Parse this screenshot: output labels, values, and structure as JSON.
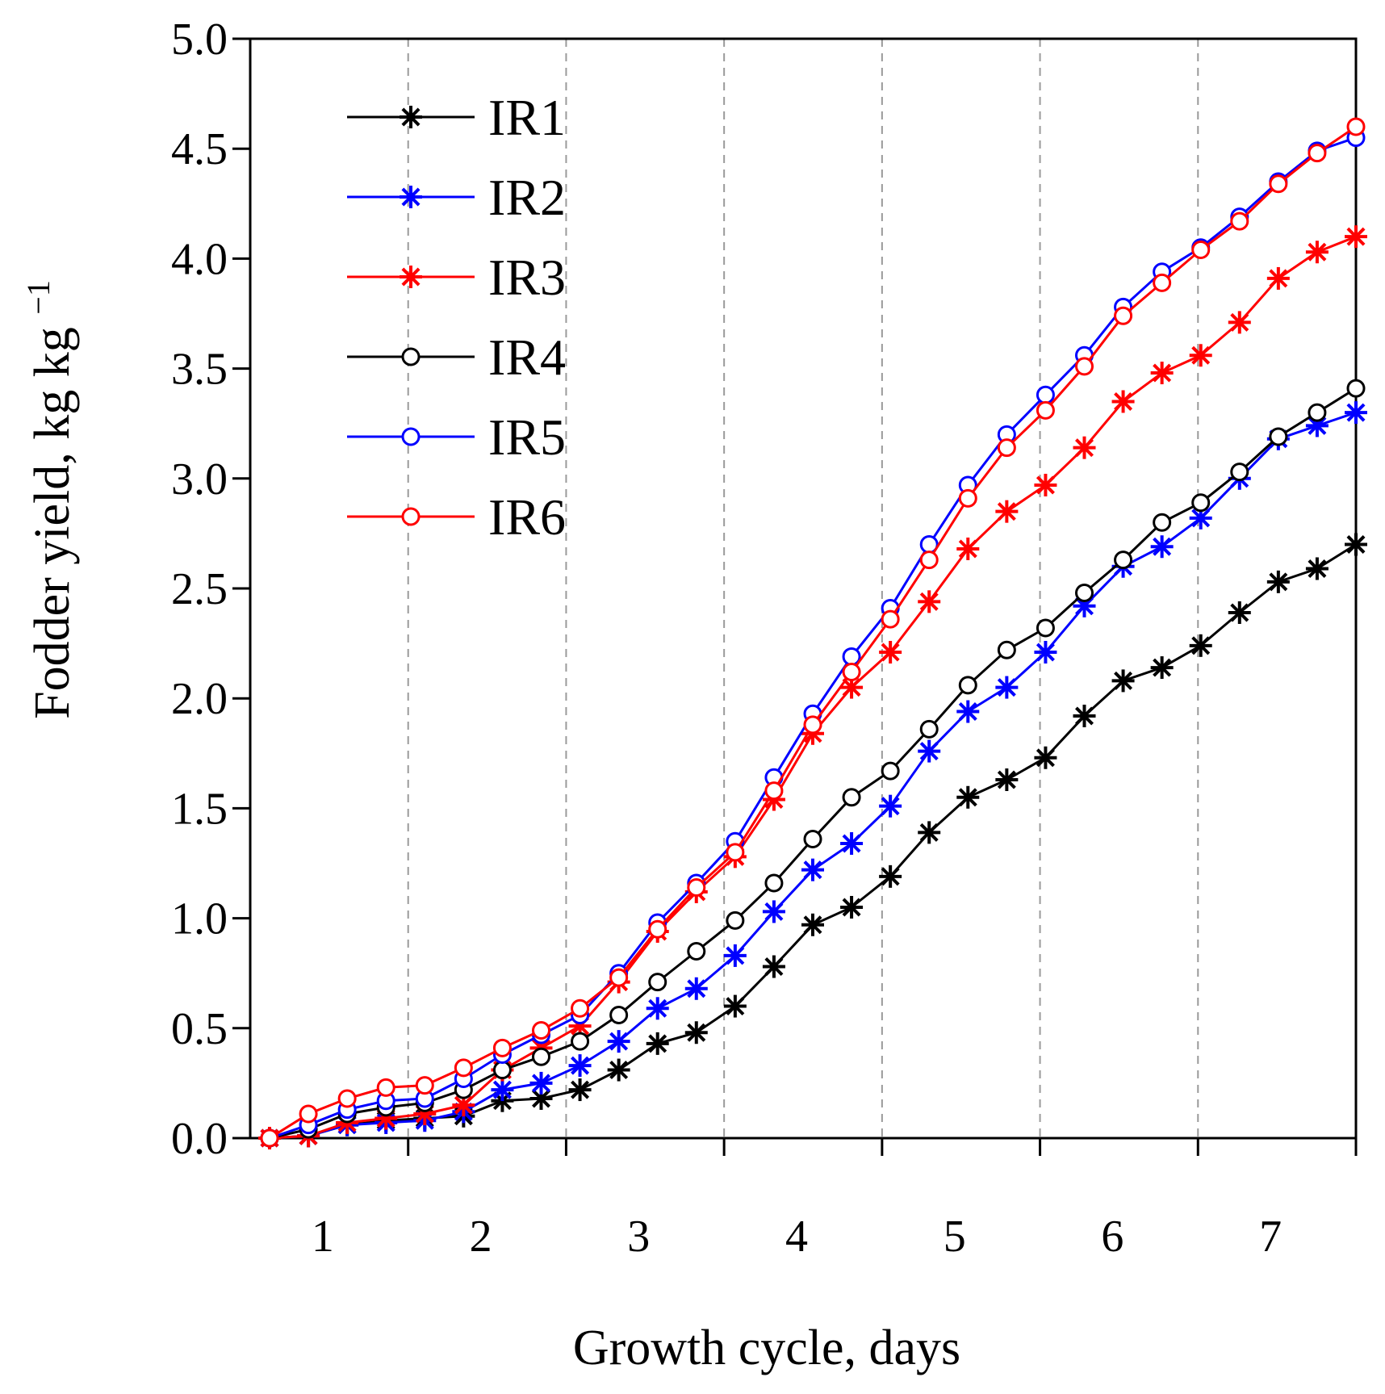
{
  "chart_data": {
    "type": "line",
    "xlabel": "Growth cycle, days",
    "ylabel": "Fodder yield, kg kg",
    "ylabel_sup": "−1",
    "ylim": [
      0,
      5
    ],
    "xlim": [
      0,
      7
    ],
    "yticks": [
      "0.0",
      "0.5",
      "1.0",
      "1.5",
      "2.0",
      "2.5",
      "3.0",
      "3.5",
      "4.0",
      "4.5",
      "5.0"
    ],
    "xtick_labels": [
      "1",
      "2",
      "3",
      "4",
      "5",
      "6",
      "7"
    ],
    "grid": "vertical dashed at day boundaries",
    "legend_position": "top-left",
    "x": [
      0,
      0.25,
      0.5,
      0.75,
      1,
      1.25,
      1.5,
      1.75,
      2,
      2.25,
      2.5,
      2.75,
      3,
      3.25,
      3.5,
      3.75,
      4,
      4.25,
      4.5,
      4.75,
      5,
      5.25,
      5.5,
      5.75,
      6,
      6.25,
      6.5,
      6.75,
      7
    ],
    "series": [
      {
        "name": "IR1",
        "color": "#000000",
        "marker": "star",
        "values": [
          0,
          0.01,
          0.06,
          0.08,
          0.09,
          0.1,
          0.17,
          0.18,
          0.22,
          0.31,
          0.43,
          0.48,
          0.6,
          0.78,
          0.97,
          1.05,
          1.19,
          1.39,
          1.55,
          1.63,
          1.73,
          1.92,
          2.08,
          2.14,
          2.24,
          2.39,
          2.53,
          2.59,
          2.7
        ]
      },
      {
        "name": "IR2",
        "color": "#0000ff",
        "marker": "star",
        "values": [
          0,
          0.01,
          0.06,
          0.07,
          0.08,
          0.12,
          0.22,
          0.25,
          0.33,
          0.44,
          0.59,
          0.68,
          0.83,
          1.03,
          1.22,
          1.34,
          1.51,
          1.76,
          1.94,
          2.05,
          2.21,
          2.42,
          2.6,
          2.69,
          2.82,
          3.0,
          3.18,
          3.24,
          3.3
        ]
      },
      {
        "name": "IR3",
        "color": "#ff0000",
        "marker": "star",
        "values": [
          0,
          0.01,
          0.07,
          0.09,
          0.11,
          0.15,
          0.31,
          0.41,
          0.51,
          0.71,
          0.94,
          1.12,
          1.28,
          1.54,
          1.84,
          2.05,
          2.21,
          2.44,
          2.68,
          2.85,
          2.97,
          3.14,
          3.35,
          3.48,
          3.56,
          3.71,
          3.91,
          4.03,
          4.1
        ]
      },
      {
        "name": "IR4",
        "color": "#000000",
        "marker": "circle",
        "values": [
          0,
          0.04,
          0.11,
          0.14,
          0.16,
          0.22,
          0.31,
          0.37,
          0.44,
          0.56,
          0.71,
          0.85,
          0.99,
          1.16,
          1.36,
          1.55,
          1.67,
          1.86,
          2.06,
          2.22,
          2.32,
          2.48,
          2.63,
          2.8,
          2.89,
          3.03,
          3.19,
          3.3,
          3.41
        ]
      },
      {
        "name": "IR5",
        "color": "#0000ff",
        "marker": "circle",
        "values": [
          0,
          0.06,
          0.13,
          0.17,
          0.18,
          0.27,
          0.38,
          0.47,
          0.56,
          0.75,
          0.98,
          1.16,
          1.35,
          1.64,
          1.93,
          2.19,
          2.41,
          2.7,
          2.97,
          3.2,
          3.38,
          3.56,
          3.78,
          3.94,
          4.05,
          4.19,
          4.35,
          4.49,
          4.55
        ]
      },
      {
        "name": "IR6",
        "color": "#ff0000",
        "marker": "circle",
        "values": [
          0,
          0.11,
          0.18,
          0.23,
          0.24,
          0.32,
          0.41,
          0.49,
          0.59,
          0.73,
          0.95,
          1.14,
          1.3,
          1.58,
          1.88,
          2.12,
          2.36,
          2.63,
          2.91,
          3.14,
          3.31,
          3.51,
          3.74,
          3.89,
          4.04,
          4.17,
          4.34,
          4.48,
          4.6
        ]
      }
    ]
  }
}
